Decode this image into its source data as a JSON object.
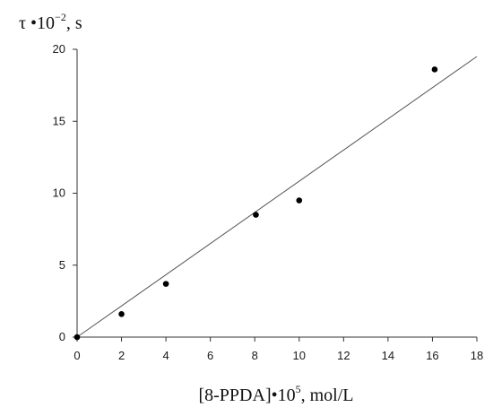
{
  "chart_data": {
    "type": "scatter",
    "ylabel": {
      "prefix": "τ •10",
      "exponent": "−2",
      "suffix": ", s"
    },
    "xlabel": {
      "prefix": "[8-PPDA]•10",
      "exponent": "5",
      "suffix": ", mol/L"
    },
    "xlim": [
      0,
      18
    ],
    "ylim": [
      0,
      20
    ],
    "xticks": [
      0,
      2,
      4,
      6,
      8,
      10,
      12,
      14,
      16,
      18
    ],
    "yticks": [
      0,
      5,
      10,
      15,
      20
    ],
    "grid": false,
    "series": [
      {
        "points": [
          {
            "x": 0,
            "y": 0
          },
          {
            "x": 2,
            "y": 1.6
          },
          {
            "x": 4,
            "y": 3.7
          },
          {
            "x": 8.05,
            "y": 8.5
          },
          {
            "x": 10,
            "y": 9.5
          },
          {
            "x": 16.1,
            "y": 18.6
          }
        ],
        "marker_color": "#000000"
      }
    ],
    "fit_line": {
      "x": [
        0,
        18
      ],
      "y": [
        0,
        19.5
      ],
      "color": "#555555"
    }
  }
}
